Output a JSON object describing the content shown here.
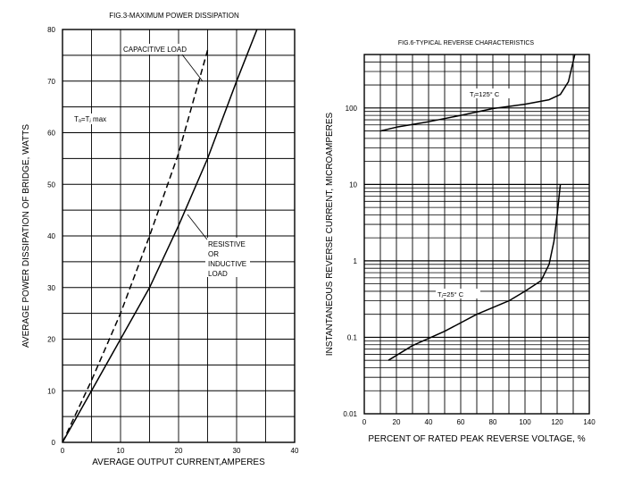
{
  "chart_data": [
    {
      "type": "line",
      "title": "FIG.3-MAXIMUM POWER DISSIPATION",
      "xlabel": "AVERAGE OUTPUT CURRENT,AMPERES",
      "ylabel": "AVERAGE POWER DISSIPATION OF BRIDGE, WATTS",
      "xlim": [
        0,
        40
      ],
      "ylim": [
        0,
        80
      ],
      "xticks": [
        "0",
        "10",
        "20",
        "30",
        "40"
      ],
      "yticks": [
        "0",
        "10",
        "20",
        "30",
        "40",
        "50",
        "60",
        "70",
        "80"
      ],
      "grid": true,
      "series": [
        {
          "name": "CAPACITIVE LOAD",
          "style": "dashed",
          "x": [
            0,
            5,
            10,
            15,
            20,
            25
          ],
          "y": [
            0,
            12,
            25,
            40,
            56,
            76
          ]
        },
        {
          "name": "RESISTIVE OR INDUCTIVE LOAD",
          "style": "solid",
          "x": [
            0,
            5,
            10,
            15,
            20,
            25,
            30,
            33.5
          ],
          "y": [
            0,
            10,
            20,
            30,
            42,
            55,
            70,
            80
          ]
        }
      ],
      "annotations": [
        {
          "text": "CAPACITIVE LOAD"
        },
        {
          "lines": [
            "RESISTIVE",
            "OR",
            "INDUCTIVE",
            "LOAD"
          ]
        },
        {
          "text": "Tₐ=Tⱼ max"
        }
      ]
    },
    {
      "type": "line",
      "title": "FIG.6-TYPICAL REVERSE CHARACTERISTICS",
      "xlabel": "PERCENT OF RATED PEAK REVERSE VOLTAGE, %",
      "ylabel": "INSTANTANEOUS REVERSE CURRENT, MICROAMPERES",
      "xlim": [
        0,
        140
      ],
      "ylim": [
        0.01,
        500
      ],
      "yscale": "log",
      "xticks": [
        "0",
        "20",
        "40",
        "60",
        "80",
        "100",
        "120",
        "140"
      ],
      "yticks": [
        "0.01",
        "0.1",
        "1",
        "10",
        "100"
      ],
      "grid": true,
      "series": [
        {
          "name": "Tⱼ=125° C",
          "x": [
            10,
            20,
            40,
            60,
            80,
            100,
            115,
            122,
            127,
            131
          ],
          "y": [
            50,
            56,
            66,
            80,
            98,
            112,
            128,
            150,
            220,
            500
          ]
        },
        {
          "name": "Tⱼ=25° C",
          "x": [
            15,
            20,
            30,
            50,
            70,
            90,
            100,
            110,
            115,
            118,
            120,
            122
          ],
          "y": [
            0.05,
            0.058,
            0.078,
            0.12,
            0.2,
            0.3,
            0.4,
            0.55,
            0.9,
            1.8,
            4,
            10
          ]
        }
      ]
    }
  ]
}
